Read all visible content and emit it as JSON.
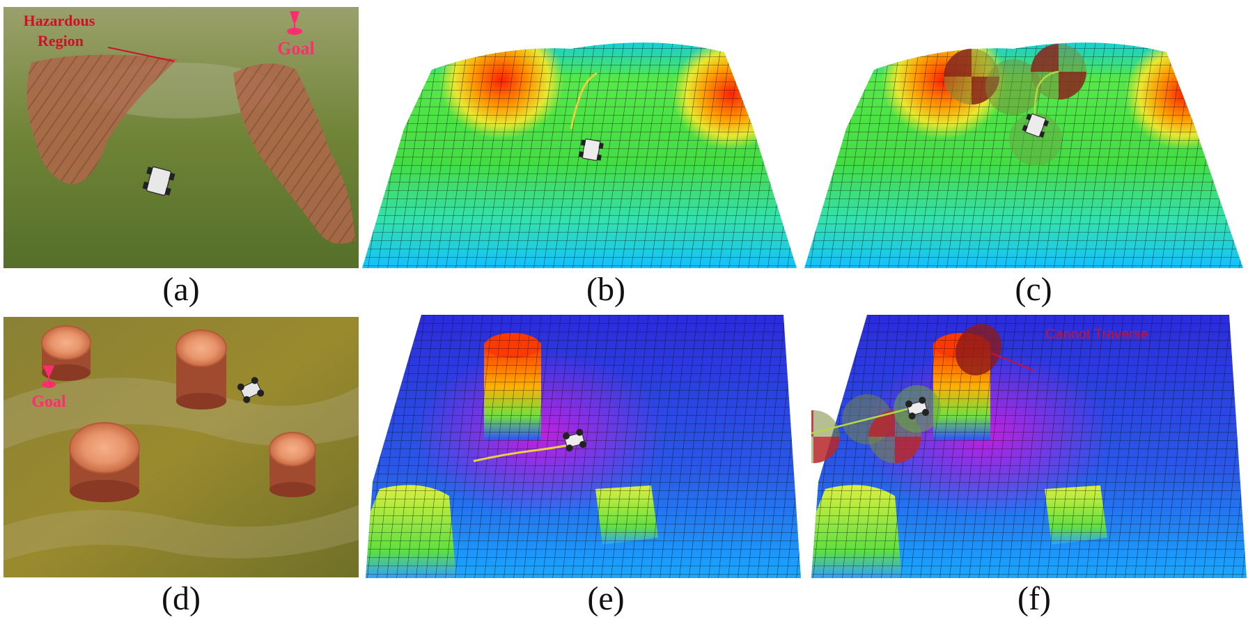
{
  "captions": {
    "a": "(a)",
    "b": "(b)",
    "c": "(c)",
    "d": "(d)",
    "e": "(e)",
    "f": "(f)"
  },
  "panel_a": {
    "hazard_label_line1": "Hazardous",
    "hazard_label_line2": "Region",
    "goal_label": "Goal"
  },
  "panel_d": {
    "goal_label": "Goal"
  },
  "panel_f": {
    "annotation": "Cannot Traverse"
  },
  "colors": {
    "label_red": "#d0102a",
    "goal_pink": "#ff2d70",
    "terrain_grass": "#7a8a3a",
    "hazard": "#b0664a"
  }
}
